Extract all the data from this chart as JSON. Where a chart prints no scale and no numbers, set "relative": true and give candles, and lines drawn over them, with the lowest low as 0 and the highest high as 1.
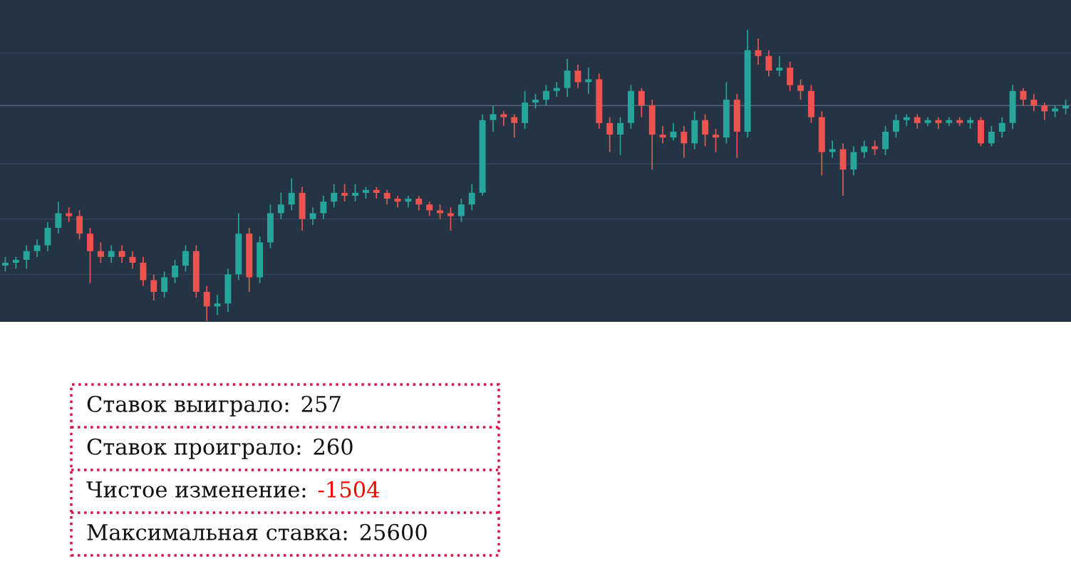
{
  "chart_data": [
    {
      "type": "candlestick",
      "relative": true,
      "categories": [
        null,
        null,
        null,
        null,
        null,
        null,
        null,
        null,
        null,
        null,
        null,
        null,
        null,
        null,
        null,
        null,
        null,
        null,
        null,
        null,
        null,
        null,
        null,
        null,
        null,
        null,
        null,
        null,
        null,
        null,
        null,
        null,
        null,
        null,
        null,
        null,
        null,
        null,
        null,
        null,
        null,
        null,
        null,
        null,
        null,
        null,
        null,
        null,
        null,
        null,
        null,
        null,
        null,
        null,
        null,
        null,
        null,
        null,
        null,
        null,
        null,
        null,
        null,
        null,
        null,
        null,
        null,
        null,
        null,
        null,
        null,
        null,
        null,
        null,
        null,
        null,
        null,
        null,
        null,
        null,
        null,
        null,
        null,
        null,
        null,
        null,
        null,
        null,
        null,
        null,
        null,
        null,
        null,
        null,
        null,
        null,
        null,
        null,
        null,
        null,
        null
      ],
      "ohlc": [
        [
          0.19,
          0.22,
          0.17,
          0.2
        ],
        [
          0.2,
          0.22,
          0.18,
          0.21
        ],
        [
          0.21,
          0.26,
          0.18,
          0.24
        ],
        [
          0.24,
          0.28,
          0.22,
          0.26
        ],
        [
          0.26,
          0.34,
          0.24,
          0.32
        ],
        [
          0.32,
          0.41,
          0.3,
          0.37
        ],
        [
          0.37,
          0.39,
          0.34,
          0.36
        ],
        [
          0.36,
          0.38,
          0.28,
          0.3
        ],
        [
          0.3,
          0.32,
          0.13,
          0.24
        ],
        [
          0.24,
          0.27,
          0.2,
          0.22
        ],
        [
          0.22,
          0.26,
          0.2,
          0.24
        ],
        [
          0.24,
          0.26,
          0.2,
          0.22
        ],
        [
          0.22,
          0.24,
          0.18,
          0.2
        ],
        [
          0.2,
          0.22,
          0.12,
          0.14
        ],
        [
          0.14,
          0.16,
          0.07,
          0.1
        ],
        [
          0.1,
          0.17,
          0.08,
          0.15
        ],
        [
          0.15,
          0.21,
          0.13,
          0.19
        ],
        [
          0.19,
          0.26,
          0.17,
          0.24
        ],
        [
          0.24,
          0.26,
          0.08,
          0.1
        ],
        [
          0.1,
          0.12,
          0.0,
          0.05
        ],
        [
          0.05,
          0.09,
          0.02,
          0.06
        ],
        [
          0.06,
          0.18,
          0.03,
          0.16
        ],
        [
          0.16,
          0.37,
          0.14,
          0.3
        ],
        [
          0.3,
          0.32,
          0.1,
          0.15
        ],
        [
          0.15,
          0.29,
          0.13,
          0.27
        ],
        [
          0.27,
          0.4,
          0.25,
          0.37
        ],
        [
          0.37,
          0.44,
          0.35,
          0.4
        ],
        [
          0.4,
          0.49,
          0.38,
          0.44
        ],
        [
          0.44,
          0.46,
          0.31,
          0.35
        ],
        [
          0.35,
          0.39,
          0.33,
          0.37
        ],
        [
          0.37,
          0.43,
          0.35,
          0.41
        ],
        [
          0.41,
          0.47,
          0.39,
          0.44
        ],
        [
          0.44,
          0.47,
          0.41,
          0.43
        ],
        [
          0.43,
          0.47,
          0.41,
          0.44
        ],
        [
          0.44,
          0.46,
          0.42,
          0.45
        ],
        [
          0.45,
          0.46,
          0.42,
          0.44
        ],
        [
          0.44,
          0.45,
          0.4,
          0.42
        ],
        [
          0.42,
          0.43,
          0.39,
          0.41
        ],
        [
          0.41,
          0.43,
          0.39,
          0.42
        ],
        [
          0.42,
          0.43,
          0.38,
          0.4
        ],
        [
          0.4,
          0.41,
          0.36,
          0.38
        ],
        [
          0.38,
          0.4,
          0.35,
          0.37
        ],
        [
          0.37,
          0.39,
          0.31,
          0.36
        ],
        [
          0.36,
          0.42,
          0.34,
          0.4
        ],
        [
          0.4,
          0.47,
          0.38,
          0.44
        ],
        [
          0.44,
          0.71,
          0.43,
          0.69
        ],
        [
          0.69,
          0.74,
          0.65,
          0.71
        ],
        [
          0.71,
          0.72,
          0.67,
          0.7
        ],
        [
          0.7,
          0.71,
          0.63,
          0.68
        ],
        [
          0.68,
          0.79,
          0.66,
          0.75
        ],
        [
          0.75,
          0.78,
          0.73,
          0.76
        ],
        [
          0.76,
          0.81,
          0.74,
          0.79
        ],
        [
          0.79,
          0.82,
          0.77,
          0.8
        ],
        [
          0.8,
          0.9,
          0.77,
          0.86
        ],
        [
          0.86,
          0.88,
          0.8,
          0.82
        ],
        [
          0.82,
          0.87,
          0.78,
          0.83
        ],
        [
          0.83,
          0.85,
          0.66,
          0.68
        ],
        [
          0.68,
          0.7,
          0.58,
          0.64
        ],
        [
          0.64,
          0.7,
          0.57,
          0.68
        ],
        [
          0.68,
          0.81,
          0.66,
          0.79
        ],
        [
          0.79,
          0.8,
          0.7,
          0.74
        ],
        [
          0.74,
          0.76,
          0.52,
          0.64
        ],
        [
          0.64,
          0.67,
          0.61,
          0.63
        ],
        [
          0.63,
          0.68,
          0.62,
          0.65
        ],
        [
          0.65,
          0.67,
          0.56,
          0.61
        ],
        [
          0.61,
          0.72,
          0.59,
          0.69
        ],
        [
          0.69,
          0.71,
          0.6,
          0.64
        ],
        [
          0.64,
          0.66,
          0.58,
          0.63
        ],
        [
          0.63,
          0.82,
          0.61,
          0.76
        ],
        [
          0.76,
          0.78,
          0.56,
          0.65
        ],
        [
          0.65,
          1.0,
          0.63,
          0.93
        ],
        [
          0.93,
          0.97,
          0.88,
          0.91
        ],
        [
          0.91,
          0.93,
          0.84,
          0.86
        ],
        [
          0.86,
          0.91,
          0.84,
          0.87
        ],
        [
          0.87,
          0.89,
          0.79,
          0.81
        ],
        [
          0.81,
          0.83,
          0.76,
          0.79
        ],
        [
          0.79,
          0.81,
          0.68,
          0.7
        ],
        [
          0.7,
          0.72,
          0.5,
          0.58
        ],
        [
          0.58,
          0.62,
          0.56,
          0.59
        ],
        [
          0.59,
          0.61,
          0.43,
          0.52
        ],
        [
          0.52,
          0.6,
          0.5,
          0.58
        ],
        [
          0.58,
          0.62,
          0.56,
          0.6
        ],
        [
          0.6,
          0.62,
          0.57,
          0.59
        ],
        [
          0.59,
          0.67,
          0.57,
          0.65
        ],
        [
          0.65,
          0.71,
          0.63,
          0.69
        ],
        [
          0.69,
          0.71,
          0.67,
          0.7
        ],
        [
          0.7,
          0.71,
          0.66,
          0.68
        ],
        [
          0.68,
          0.7,
          0.67,
          0.69
        ],
        [
          0.69,
          0.7,
          0.66,
          0.68
        ],
        [
          0.68,
          0.7,
          0.67,
          0.69
        ],
        [
          0.69,
          0.7,
          0.67,
          0.68
        ],
        [
          0.68,
          0.7,
          0.66,
          0.69
        ],
        [
          0.69,
          0.7,
          0.6,
          0.61
        ],
        [
          0.61,
          0.67,
          0.6,
          0.65
        ],
        [
          0.65,
          0.7,
          0.63,
          0.68
        ],
        [
          0.68,
          0.81,
          0.66,
          0.79
        ],
        [
          0.79,
          0.8,
          0.74,
          0.76
        ],
        [
          0.76,
          0.78,
          0.72,
          0.74
        ],
        [
          0.74,
          0.75,
          0.69,
          0.72
        ],
        [
          0.72,
          0.74,
          0.7,
          0.73
        ],
        [
          0.73,
          0.76,
          0.71,
          0.74
        ]
      ],
      "ref_lines": [
        {
          "axis": "y",
          "value": 0.92,
          "color": "#33445a"
        },
        {
          "axis": "y",
          "value": 0.74,
          "color": "#56667a"
        },
        {
          "axis": "y",
          "value": 0.54,
          "color": "#33445a"
        },
        {
          "axis": "y",
          "value": 0.35,
          "color": "#33445a"
        },
        {
          "axis": "y",
          "value": 0.16,
          "color": "#33445a"
        }
      ]
    },
    {
      "type": "other",
      "annotations": [
        "Ставок выиграло: 257",
        "Ставок проиграло: 260",
        "Чистое изменение: -1504",
        "Максимальная ставка: 25600"
      ],
      "colors": [
        "#111111",
        "#111111",
        "#ff0000",
        "#111111"
      ]
    }
  ]
}
